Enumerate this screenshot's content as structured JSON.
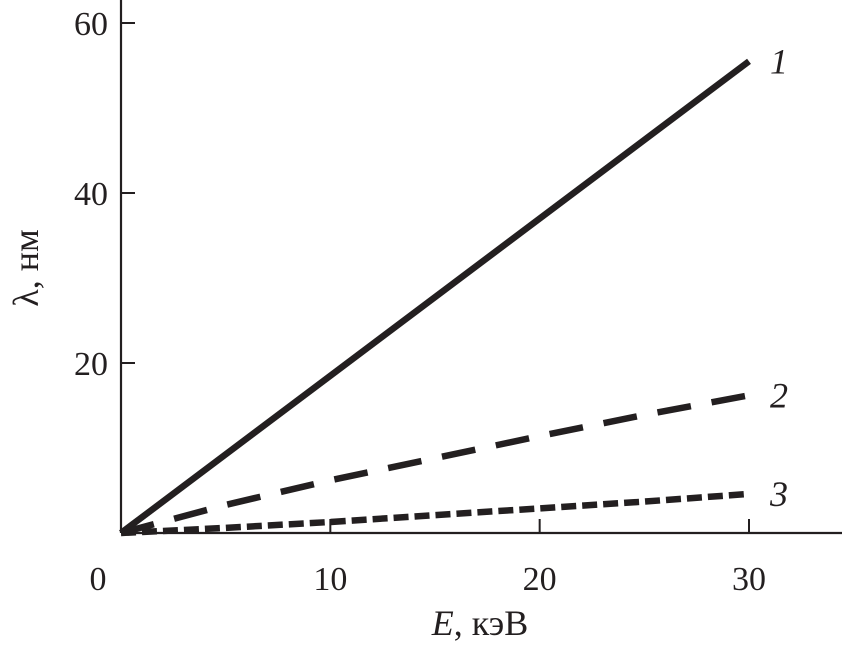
{
  "chart_data": {
    "type": "line",
    "xlabel": {
      "var": "E",
      "unit": ", кэВ"
    },
    "ylabel": {
      "var": "λ",
      "unit": ", нм"
    },
    "xlim": [
      0,
      34.5
    ],
    "ylim": [
      0,
      60
    ],
    "x_ticks": [
      0,
      10,
      20,
      30
    ],
    "y_ticks": [
      20,
      40,
      60
    ],
    "x_tick_labels": [
      "0",
      "10",
      "20",
      "30"
    ],
    "y_tick_labels": [
      "20",
      "40",
      "60"
    ],
    "grid": false,
    "legend": "none",
    "series": [
      {
        "label": "1",
        "style": "solid",
        "color": "#231f20",
        "x": [
          0,
          30
        ],
        "y": [
          0,
          55.5
        ]
      },
      {
        "label": "2",
        "style": "long-dash",
        "color": "#231f20",
        "x": [
          0,
          5,
          10,
          15,
          20,
          25,
          30
        ],
        "y": [
          0,
          3.3,
          6.2,
          8.8,
          11.4,
          13.9,
          16.2
        ]
      },
      {
        "label": "3",
        "style": "short-dash",
        "color": "#231f20",
        "x": [
          0,
          5,
          10,
          15,
          20,
          25,
          30
        ],
        "y": [
          0,
          0.6,
          1.3,
          2.1,
          2.9,
          3.7,
          4.6
        ]
      }
    ]
  }
}
